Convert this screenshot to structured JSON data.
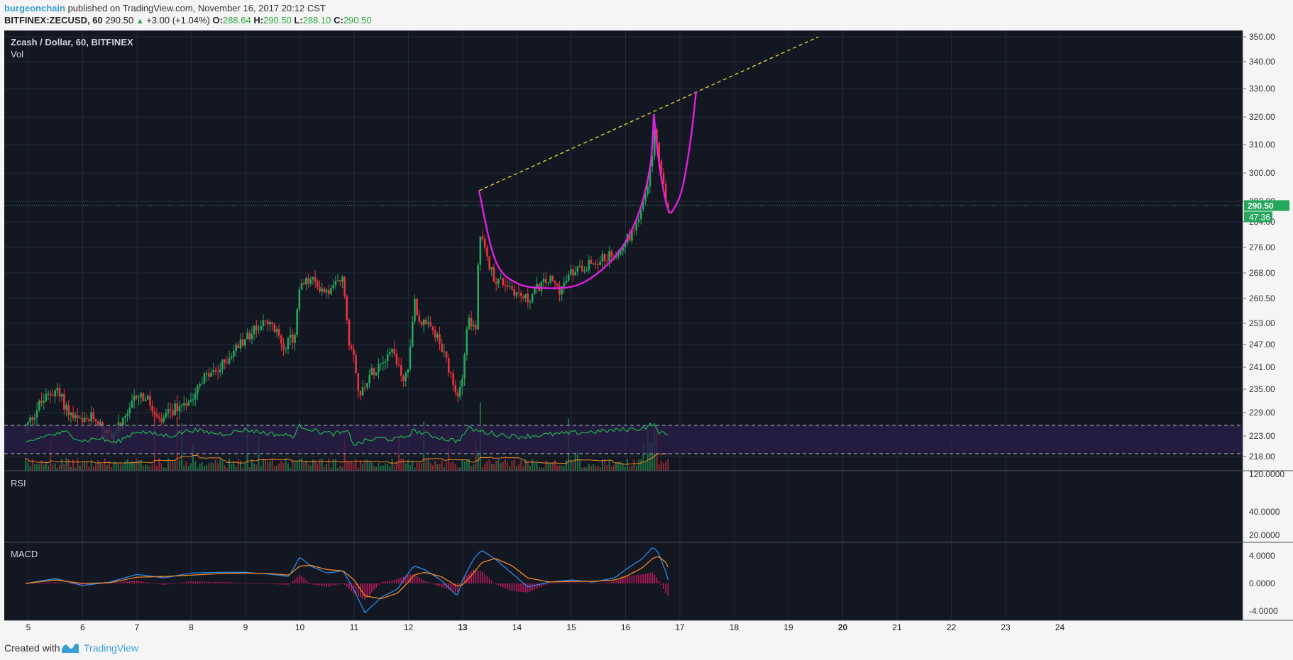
{
  "header": {
    "author": "burgeonchain",
    "published_text": "published on TradingView.com, November 16, 2017 20:12 CST",
    "symbol": "BITFINEX:ZECUSD, 60",
    "last": "290.50",
    "up_arrow": "▲",
    "change": "+3.00 (+1.04%)",
    "o_label": "O:",
    "o_value": "288.64",
    "h_label": "H:",
    "h_value": "290.50",
    "l_label": "L:",
    "l_value": "288.10",
    "c_label": "C:",
    "c_value": "290.50"
  },
  "footer": {
    "created_with": "Created with",
    "brand": "TradingView"
  },
  "colors": {
    "background": "#131722",
    "grid": "#232838",
    "up_candle": "#26a65b",
    "down_candle": "#e8343b",
    "pattern_curve": "#e020e0",
    "trendline": "#f5e02a",
    "rsi_line": "#22b14c",
    "macd_line": "#2b8be6",
    "signal_line": "#f08a24",
    "histogram": "#c2185b",
    "volume_ma": "#f08a24",
    "price_tag": "#26a65b"
  },
  "chart_data": [
    {
      "type": "candlestick",
      "title": "Zcash / Dollar, 60, BITFINEX",
      "indicator_label": "Vol",
      "y_ticks": [
        "350.00",
        "340.00",
        "330.00",
        "320.00",
        "310.00",
        "300.00",
        "292.00",
        "284.00",
        "276.00",
        "268.00",
        "260.50",
        "253.00",
        "247.00",
        "241.00",
        "235.00",
        "229.00",
        "223.00",
        "218.00"
      ],
      "x_ticks": [
        "5",
        "6",
        "7",
        "8",
        "9",
        "10",
        "11",
        "12",
        "13",
        "14",
        "15",
        "16",
        "17",
        "18",
        "19",
        "20",
        "21",
        "22",
        "23",
        "24"
      ],
      "bold_x_ticks": [
        "13",
        "20"
      ],
      "last_price": 290.5,
      "last_price_label": "290.50",
      "countdown_label": "47:36",
      "price_path": [
        [
          4.95,
          225
        ],
        [
          5.2,
          231
        ],
        [
          5.5,
          235
        ],
        [
          5.8,
          228
        ],
        [
          6.0,
          226
        ],
        [
          6.2,
          228
        ],
        [
          6.5,
          223
        ],
        [
          6.8,
          227
        ],
        [
          7.0,
          234
        ],
        [
          7.2,
          232
        ],
        [
          7.4,
          226
        ],
        [
          7.7,
          230
        ],
        [
          8.0,
          233
        ],
        [
          8.2,
          238
        ],
        [
          8.5,
          240
        ],
        [
          8.7,
          244
        ],
        [
          9.0,
          249
        ],
        [
          9.3,
          253
        ],
        [
          9.5,
          252
        ],
        [
          9.7,
          247
        ],
        [
          9.9,
          249
        ],
        [
          10.0,
          264
        ],
        [
          10.2,
          266
        ],
        [
          10.5,
          262
        ],
        [
          10.7,
          265
        ],
        [
          10.8,
          266
        ],
        [
          10.9,
          248
        ],
        [
          11.0,
          245
        ],
        [
          11.1,
          232
        ],
        [
          11.2,
          237
        ],
        [
          11.5,
          243
        ],
        [
          11.7,
          246
        ],
        [
          11.9,
          238
        ],
        [
          12.0,
          240
        ],
        [
          12.1,
          260
        ],
        [
          12.2,
          254
        ],
        [
          12.5,
          250
        ],
        [
          12.7,
          242
        ],
        [
          12.9,
          232
        ],
        [
          13.0,
          240
        ],
        [
          13.1,
          255
        ],
        [
          13.25,
          250
        ],
        [
          13.3,
          282
        ],
        [
          13.45,
          272
        ],
        [
          13.6,
          266
        ],
        [
          13.8,
          265
        ],
        [
          14.0,
          262
        ],
        [
          14.2,
          260
        ],
        [
          14.4,
          264
        ],
        [
          14.6,
          266
        ],
        [
          14.8,
          263
        ],
        [
          15.0,
          268
        ],
        [
          15.2,
          270
        ],
        [
          15.5,
          272
        ],
        [
          15.8,
          274
        ],
        [
          16.0,
          278
        ],
        [
          16.1,
          280
        ],
        [
          16.2,
          284
        ],
        [
          16.3,
          290
        ],
        [
          16.4,
          295
        ],
        [
          16.5,
          308
        ],
        [
          16.55,
          318
        ],
        [
          16.6,
          306
        ],
        [
          16.7,
          296
        ],
        [
          16.75,
          291
        ],
        [
          16.8,
          288
        ]
      ],
      "annotations": {
        "cup_curve": [
          [
            13.3,
            295
          ],
          [
            13.6,
            272
          ],
          [
            14.0,
            265
          ],
          [
            14.6,
            263.5
          ],
          [
            15.2,
            265
          ],
          [
            15.8,
            273
          ],
          [
            16.2,
            285
          ],
          [
            16.45,
            302
          ],
          [
            16.52,
            321
          ]
        ],
        "handle_curve": [
          [
            16.52,
            321
          ],
          [
            16.6,
            306
          ],
          [
            16.7,
            295
          ],
          [
            16.8,
            288
          ],
          [
            16.9,
            289.5
          ],
          [
            17.05,
            296
          ],
          [
            17.2,
            312
          ],
          [
            17.3,
            329
          ]
        ],
        "trendline": [
          [
            13.3,
            295
          ],
          [
            16.52,
            322
          ],
          [
            17.3,
            330
          ],
          [
            19.55,
            350
          ]
        ]
      }
    },
    {
      "type": "line",
      "title": "RSI",
      "y_ticks": [
        "120.0000",
        "40.0000",
        "20.0000"
      ],
      "band_upper": 70,
      "band_lower": 30,
      "x": [
        4.95,
        5.3,
        5.7,
        6.0,
        6.3,
        6.6,
        7.0,
        7.3,
        7.6,
        8.0,
        8.3,
        8.6,
        9.0,
        9.3,
        9.6,
        9.9,
        10.0,
        10.3,
        10.6,
        10.9,
        11.0,
        11.2,
        11.5,
        11.8,
        12.0,
        12.1,
        12.3,
        12.6,
        12.9,
        13.0,
        13.1,
        13.3,
        13.6,
        14.0,
        14.4,
        14.8,
        15.2,
        15.6,
        16.0,
        16.3,
        16.5,
        16.6,
        16.7,
        16.8
      ],
      "values": [
        45,
        55,
        60,
        48,
        52,
        45,
        62,
        58,
        55,
        64,
        60,
        58,
        64,
        60,
        57,
        55,
        70,
        62,
        58,
        60,
        42,
        48,
        52,
        50,
        56,
        63,
        58,
        52,
        48,
        55,
        66,
        62,
        58,
        54,
        56,
        58,
        60,
        62,
        64,
        66,
        72,
        62,
        58,
        55
      ]
    },
    {
      "type": "line",
      "title": "MACD",
      "y_ticks": [
        "4.0000",
        "0.0000",
        "-4.0000"
      ],
      "series": [
        {
          "x": [
            4.95,
            5.5,
            6.0,
            6.5,
            7.0,
            7.5,
            8.0,
            8.5,
            9.0,
            9.5,
            9.8,
            10.0,
            10.2,
            10.5,
            10.8,
            11.0,
            11.2,
            11.5,
            11.8,
            12.0,
            12.1,
            12.3,
            12.6,
            12.9,
            13.0,
            13.2,
            13.35,
            13.6,
            13.9,
            14.2,
            14.6,
            15.0,
            15.4,
            15.8,
            16.0,
            16.3,
            16.5,
            16.6,
            16.75,
            16.8
          ],
          "values": [
            0.0,
            0.7,
            -0.3,
            0.2,
            1.3,
            0.8,
            1.5,
            1.6,
            1.6,
            1.3,
            1.0,
            3.8,
            2.5,
            1.5,
            1.8,
            -1.0,
            -4.2,
            -2.0,
            -0.8,
            1.5,
            2.5,
            2.0,
            0.5,
            -1.8,
            0.5,
            3.5,
            4.8,
            3.5,
            1.5,
            -0.5,
            0.2,
            0.5,
            0.2,
            0.8,
            2.0,
            3.5,
            5.2,
            4.5,
            1.5,
            0.0
          ]
        },
        {
          "x": [
            4.95,
            5.5,
            6.0,
            6.5,
            7.0,
            7.5,
            8.0,
            8.5,
            9.0,
            9.5,
            9.8,
            10.0,
            10.2,
            10.5,
            10.8,
            11.0,
            11.2,
            11.5,
            11.8,
            12.0,
            12.1,
            12.3,
            12.6,
            12.9,
            13.0,
            13.2,
            13.35,
            13.6,
            13.9,
            14.2,
            14.6,
            15.0,
            15.4,
            15.8,
            16.0,
            16.3,
            16.5,
            16.6,
            16.75,
            16.8
          ],
          "values": [
            0.0,
            0.5,
            0.0,
            0.1,
            0.9,
            1.0,
            1.2,
            1.4,
            1.5,
            1.4,
            1.2,
            2.5,
            2.6,
            2.0,
            1.8,
            0.5,
            -1.8,
            -2.2,
            -1.4,
            0.2,
            1.2,
            1.6,
            1.0,
            -0.4,
            -0.2,
            1.5,
            3.0,
            3.6,
            2.6,
            0.8,
            0.2,
            0.3,
            0.3,
            0.5,
            1.0,
            2.2,
            3.6,
            3.9,
            3.0,
            2.0
          ]
        }
      ]
    }
  ]
}
